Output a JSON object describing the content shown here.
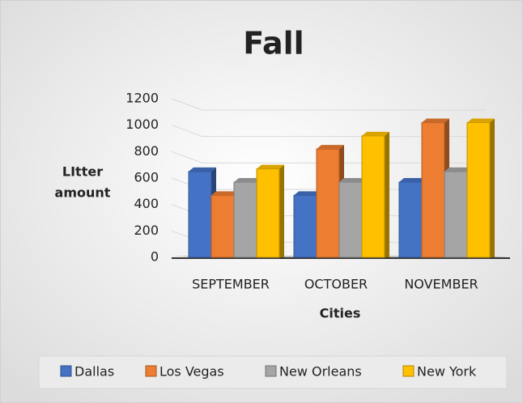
{
  "chart_data": {
    "type": "bar3d",
    "title": "Fall",
    "x_label": "Cities",
    "y_label": [
      "LItter",
      "amount"
    ],
    "categories": [
      "SEPTEMBER",
      "OCTOBER",
      "NOVEMBER"
    ],
    "series": [
      {
        "name": "Dallas",
        "color": "#4472c4",
        "values": [
          680,
          500,
          600
        ]
      },
      {
        "name": "Los Vegas",
        "color": "#ed7d31",
        "values": [
          500,
          850,
          1050
        ]
      },
      {
        "name": "New Orleans",
        "color": "#a5a5a5",
        "values": [
          600,
          600,
          680
        ]
      },
      {
        "name": "New York",
        "color": "#ffc000",
        "values": [
          700,
          950,
          1050
        ]
      }
    ],
    "ylim": [
      0,
      1200
    ],
    "yticks": [
      0,
      200,
      400,
      600,
      800,
      1000,
      1200
    ],
    "grid": true,
    "legend": "bottom"
  }
}
